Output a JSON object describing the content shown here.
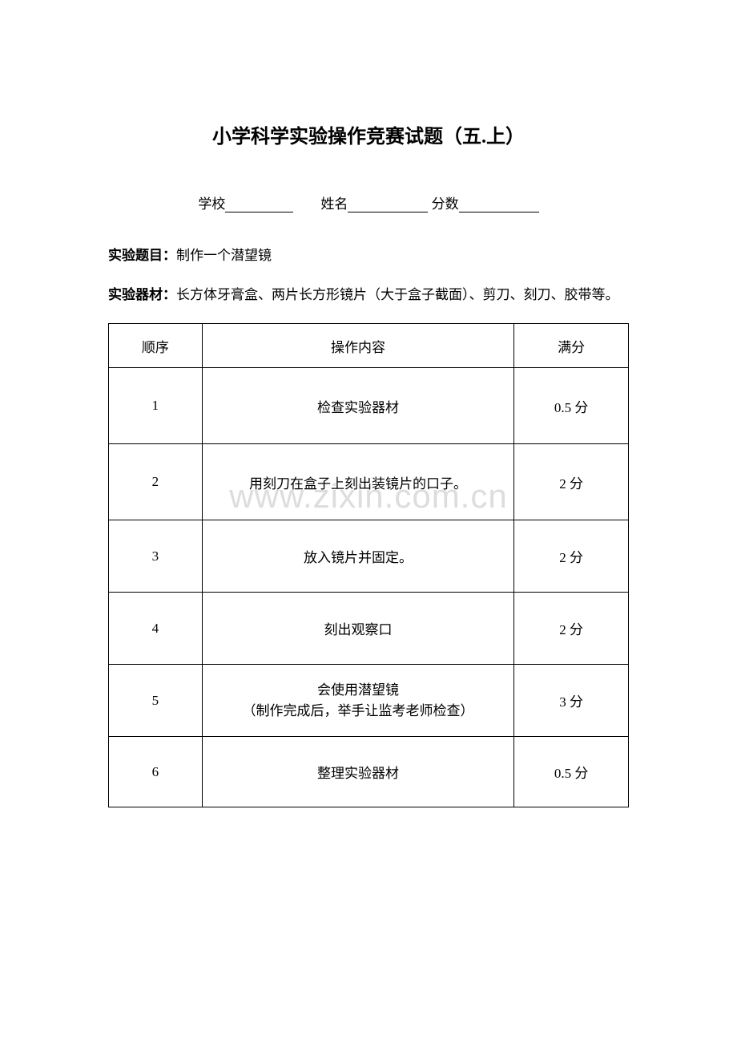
{
  "title": "小学科学实验操作竞赛试题（五.上）",
  "form": {
    "school_label": "学校",
    "name_label": "姓名",
    "score_label": "分数"
  },
  "experiment_title": {
    "label": "实验题目：",
    "value": "制作一个潜望镜"
  },
  "experiment_materials": {
    "label": "实验器材：",
    "value": "长方体牙膏盒、两片长方形镜片（大于盒子截面）、剪刀、刻刀、胶带等。"
  },
  "table": {
    "headers": {
      "seq": "顺序",
      "content": "操作内容",
      "score": "满分"
    },
    "rows": [
      {
        "seq": "1",
        "content": "检查实验器材",
        "score": "0.5 分"
      },
      {
        "seq": "2",
        "content": "用刻刀在盒子上刻出装镜片的口子。",
        "score": "2 分"
      },
      {
        "seq": "3",
        "content": "放入镜片并固定。",
        "score": "2 分"
      },
      {
        "seq": "4",
        "content": "刻出观察口",
        "score": "2 分"
      },
      {
        "seq": "5",
        "content_line1": "会使用潜望镜",
        "content_line2": "（制作完成后，举手让监考老师检查）",
        "score": "3 分"
      },
      {
        "seq": "6",
        "content": "整理实验器材",
        "score": "0.5 分"
      }
    ]
  },
  "watermark": "www.zixin.com.cn"
}
